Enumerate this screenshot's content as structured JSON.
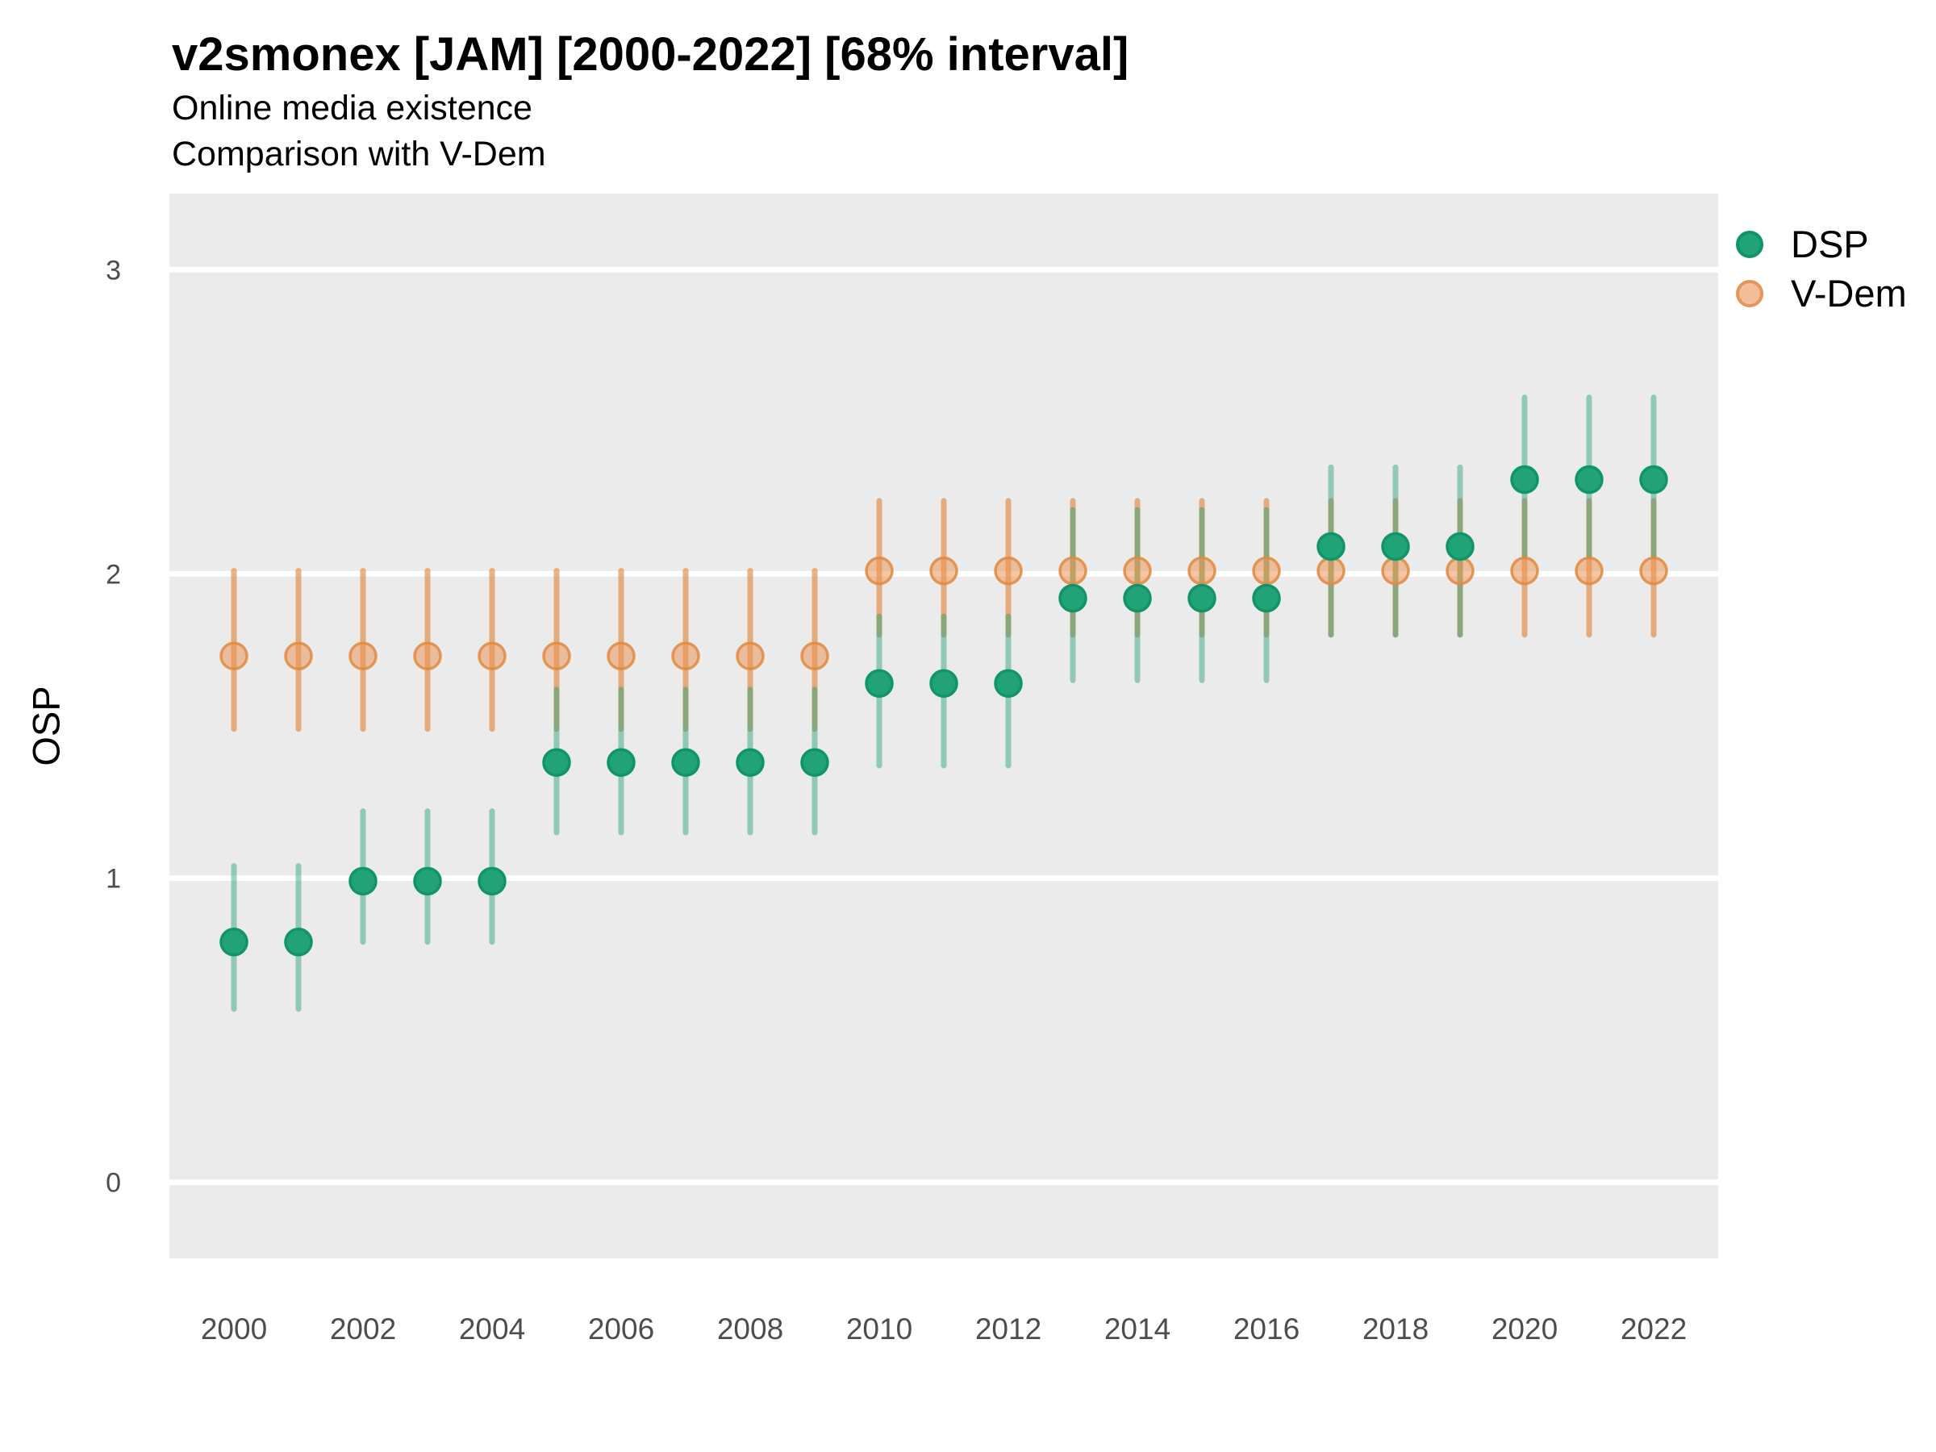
{
  "title": "v2smonex [JAM] [2000-2022] [68% interval]",
  "subtitle1": "Online media existence",
  "subtitle2": "Comparison with V-Dem",
  "colors": {
    "panel_background": "#EBEBEB",
    "gridline": "#FFFFFF",
    "tick_label": "#4D4D4D",
    "dsp_point_fill": "#22A377",
    "dsp_point_stroke": "#11946A",
    "dsp_interval": "rgba(34,160,118,0.45)",
    "vdem_point_fill": "rgba(235,150,85,0.55)",
    "vdem_point_stroke": "rgba(224,138,64,0.85)",
    "vdem_interval": "rgba(225,132,58,0.62)"
  },
  "chart_data": {
    "type": "pointrange",
    "title": "v2smonex [JAM] [2000-2022] [68% interval]",
    "subtitle": [
      "Online media existence",
      "Comparison with V-Dem"
    ],
    "ylabel": "OSP",
    "xlabel": "",
    "interval": "68%",
    "legend_position": "right",
    "grid": "horizontal-major-white",
    "x": [
      2000,
      2001,
      2002,
      2003,
      2004,
      2005,
      2006,
      2007,
      2008,
      2009,
      2010,
      2011,
      2012,
      2013,
      2014,
      2015,
      2016,
      2017,
      2018,
      2019,
      2020,
      2021,
      2022
    ],
    "x_ticks": [
      2000,
      2002,
      2004,
      2006,
      2008,
      2010,
      2012,
      2014,
      2016,
      2018,
      2020,
      2022
    ],
    "y_ticks": [
      0,
      1,
      2,
      3
    ],
    "xlim": [
      1999,
      2023
    ],
    "ylim": [
      -0.25,
      3.25
    ],
    "series": [
      {
        "name": "DSP",
        "color_key": "dsp",
        "y": [
          0.79,
          0.79,
          0.99,
          0.99,
          0.99,
          1.38,
          1.38,
          1.38,
          1.38,
          1.38,
          1.64,
          1.64,
          1.64,
          1.92,
          1.92,
          1.92,
          1.92,
          2.09,
          2.09,
          2.09,
          2.31,
          2.31,
          2.31
        ],
        "lo": [
          0.57,
          0.57,
          0.79,
          0.79,
          0.79,
          1.15,
          1.15,
          1.15,
          1.15,
          1.15,
          1.37,
          1.37,
          1.37,
          1.65,
          1.65,
          1.65,
          1.65,
          1.8,
          1.8,
          1.8,
          2.06,
          2.06,
          2.06
        ],
        "hi": [
          1.04,
          1.04,
          1.22,
          1.22,
          1.22,
          1.62,
          1.62,
          1.62,
          1.62,
          1.62,
          1.86,
          1.86,
          1.86,
          2.21,
          2.21,
          2.21,
          2.21,
          2.35,
          2.35,
          2.35,
          2.58,
          2.58,
          2.58
        ]
      },
      {
        "name": "V-Dem",
        "color_key": "vdem",
        "y": [
          1.73,
          1.73,
          1.73,
          1.73,
          1.73,
          1.73,
          1.73,
          1.73,
          1.73,
          1.73,
          2.01,
          2.01,
          2.01,
          2.01,
          2.01,
          2.01,
          2.01,
          2.01,
          2.01,
          2.01,
          2.01,
          2.01,
          2.01
        ],
        "lo": [
          1.49,
          1.49,
          1.49,
          1.49,
          1.49,
          1.49,
          1.49,
          1.49,
          1.49,
          1.49,
          1.8,
          1.8,
          1.8,
          1.8,
          1.8,
          1.8,
          1.8,
          1.8,
          1.8,
          1.8,
          1.8,
          1.8,
          1.8
        ],
        "hi": [
          2.01,
          2.01,
          2.01,
          2.01,
          2.01,
          2.01,
          2.01,
          2.01,
          2.01,
          2.01,
          2.24,
          2.24,
          2.24,
          2.24,
          2.24,
          2.24,
          2.24,
          2.24,
          2.24,
          2.24,
          2.24,
          2.24,
          2.24
        ]
      }
    ]
  }
}
